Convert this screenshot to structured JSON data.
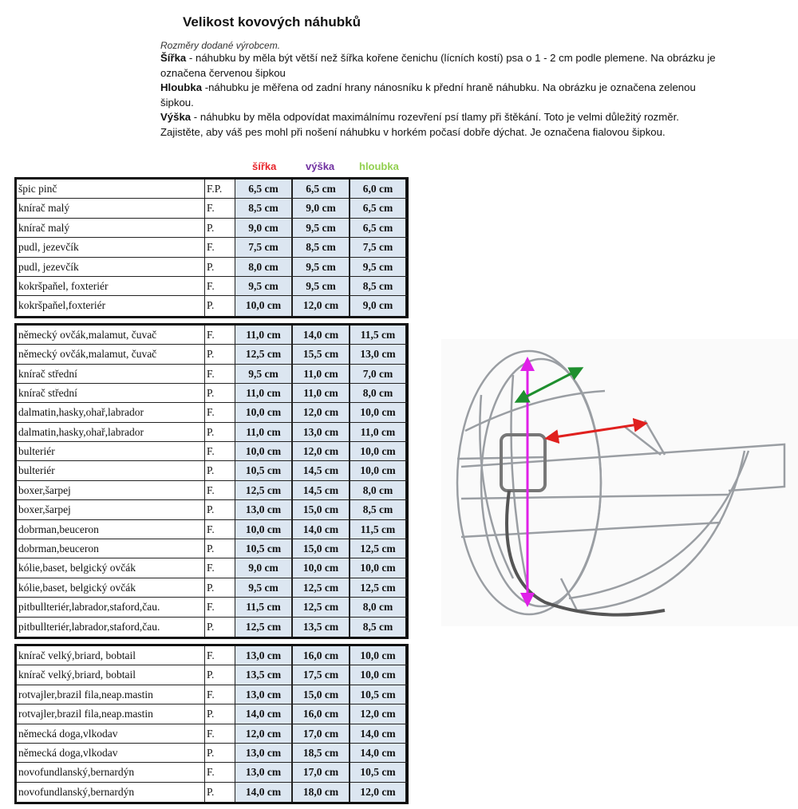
{
  "title": "Velikost kovových náhubků",
  "intro": {
    "subtitle": "Rozměry dodané výrobcem.",
    "sirka_label": "Šířka",
    "sirka_text": " - náhubku by měla být větší než šířka kořene čenichu (lícních kostí) psa o 1 - 2 cm podle plemene. Na obrázku je označena červenou šipkou",
    "hloubka_label": "Hloubka",
    "hloubka_text": " -náhubku je měřena od zadní hrany nánosníku k přední hraně náhubku. Na obrázku je označena zelenou šipkou.",
    "vyska_label": "Výška",
    "vyska_text": " - náhubku by měla odpovídat maximálnímu rozevření psí tlamy při štěkání. Toto je velmi důležitý rozměr. Zajistěte, aby váš pes mohl při nošení náhubku v horkém počasí dobře dýchat. Je označena fialovou šipkou."
  },
  "columns": {
    "sirka": "šířka",
    "vyska": "výška",
    "hloubka": "hloubka"
  },
  "colors": {
    "sirka": "#e8242b",
    "vyska": "#7030a0",
    "hloubka": "#92d050",
    "cell_bg": "#dce6f1"
  },
  "groups": [
    [
      [
        "špic pinč",
        "F.P.",
        "6,5 cm",
        "6,5 cm",
        "6,0 cm"
      ],
      [
        "knírač malý",
        "F.",
        "8,5 cm",
        "9,0 cm",
        "6,5 cm"
      ],
      [
        "knírač malý",
        "P.",
        "9,0 cm",
        "9,5 cm",
        "6,5 cm"
      ],
      [
        "pudl, jezevčík",
        "F.",
        "7,5 cm",
        "8,5 cm",
        "7,5 cm"
      ],
      [
        "pudl, jezevčík",
        "P.",
        "8,0 cm",
        "9,5 cm",
        "9,5 cm"
      ],
      [
        "kokršpaňel, foxteriér",
        "F.",
        "9,5 cm",
        "9,5 cm",
        "8,5 cm"
      ],
      [
        "kokršpaňel,foxteriér",
        "P.",
        "10,0 cm",
        "12,0 cm",
        "9,0 cm"
      ]
    ],
    [
      [
        "německý ovčák,malamut, čuvač",
        "F.",
        "11,0 cm",
        "14,0 cm",
        "11,5 cm"
      ],
      [
        "německý ovčák,malamut, čuvač",
        "P.",
        "12,5 cm",
        "15,5 cm",
        "13,0 cm"
      ],
      [
        "knírač střední",
        "F.",
        "9,5 cm",
        "11,0 cm",
        "7,0 cm"
      ],
      [
        "knírač střední",
        "P.",
        "11,0 cm",
        "11,0 cm",
        "8,0 cm"
      ],
      [
        "dalmatin,hasky,ohař,labrador",
        "F.",
        "10,0 cm",
        "12,0 cm",
        "10,0 cm"
      ],
      [
        "dalmatin,hasky,ohař,labrador",
        "P.",
        "11,0 cm",
        "13,0 cm",
        "11,0 cm"
      ],
      [
        "bulteriér",
        "F.",
        "10,0 cm",
        "12,0 cm",
        "10,0 cm"
      ],
      [
        "bulteriér",
        "P.",
        "10,5 cm",
        "14,5 cm",
        "10,0 cm"
      ],
      [
        "boxer,šarpej",
        "F.",
        "12,5 cm",
        "14,5 cm",
        "8,0 cm"
      ],
      [
        "boxer,šarpej",
        "P.",
        "13,0 cm",
        "15,0 cm",
        "8,5 cm"
      ],
      [
        "dobrman,beuceron",
        "F.",
        "10,0 cm",
        "14,0 cm",
        "11,5 cm"
      ],
      [
        "dobrman,beuceron",
        "P.",
        "10,5 cm",
        "15,0 cm",
        "12,5 cm"
      ],
      [
        "kólie,baset, belgický ovčák",
        "F.",
        "9,0 cm",
        "10,0 cm",
        "10,0 cm"
      ],
      [
        "kólie,baset, belgický ovčák",
        "P.",
        "9,5 cm",
        "12,5 cm",
        "12,5 cm"
      ],
      [
        "pitbullteriér,labrador,staford,čau.",
        "F.",
        "11,5 cm",
        "12,5 cm",
        "8,0 cm"
      ],
      [
        "pitbullteriér,labrador,staford,čau.",
        "P.",
        "12,5 cm",
        "13,5 cm",
        "8,5 cm"
      ]
    ],
    [
      [
        "knírač velký,briard, bobtail",
        "F.",
        "13,0 cm",
        "16,0 cm",
        "10,0 cm"
      ],
      [
        "knírač velký,briard, bobtail",
        "P.",
        "13,5 cm",
        "17,5 cm",
        "10,0 cm"
      ],
      [
        "rotvajler,brazil fila,neap.mastin",
        "F.",
        "13,0 cm",
        "15,0 cm",
        "10,5 cm"
      ],
      [
        "rotvajler,brazil fila,neap.mastin",
        "P.",
        "14,0 cm",
        "16,0 cm",
        "12,0 cm"
      ],
      [
        "německá doga,vlkodav",
        "F.",
        "12,0 cm",
        "17,0 cm",
        "14,0 cm"
      ],
      [
        "německá doga,vlkodav",
        "P.",
        "13,0 cm",
        "18,5 cm",
        "14,0 cm"
      ],
      [
        "novofundlanský,bernardýn",
        "F.",
        "13,0 cm",
        "17,0 cm",
        "10,5 cm"
      ],
      [
        "novofundlanský,bernardýn",
        "P.",
        "14,0 cm",
        "18,0 cm",
        "12,0 cm"
      ]
    ]
  ]
}
